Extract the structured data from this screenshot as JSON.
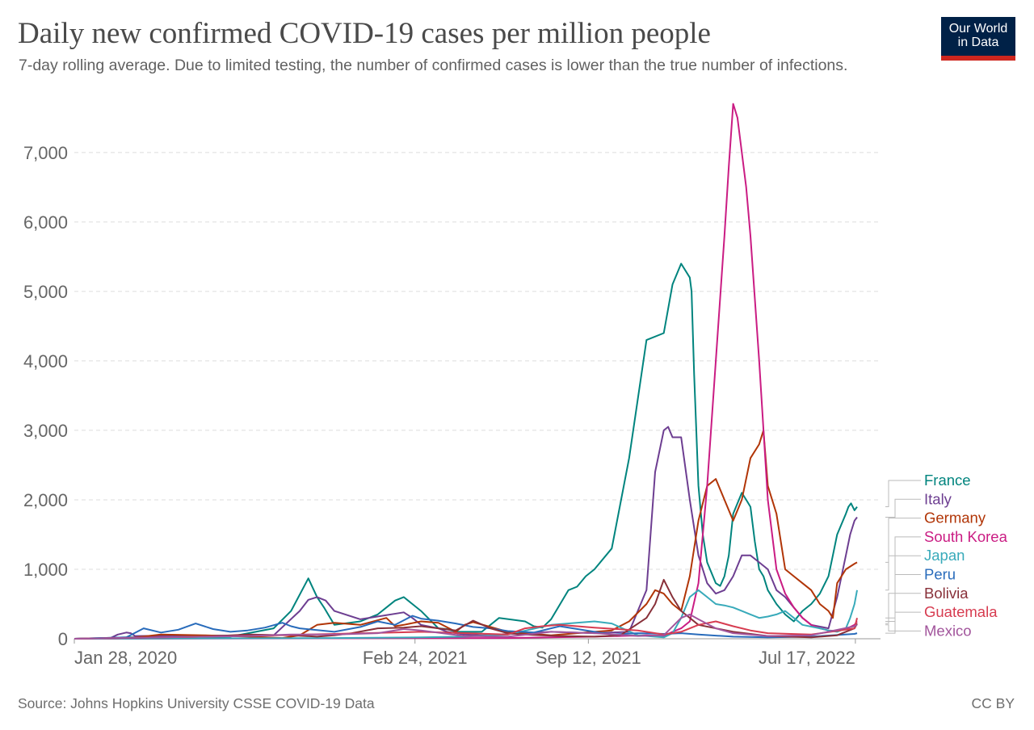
{
  "header": {
    "title": "Daily new confirmed COVID-19 cases per million people",
    "subtitle": "7-day rolling average. Due to limited testing, the number of confirmed cases is lower than the true number of infections."
  },
  "logo": {
    "line1": "Our World",
    "line2": "in Data"
  },
  "footer": {
    "source": "Source: Johns Hopkins University CSSE COVID-19 Data",
    "license": "CC BY"
  },
  "chart_data": {
    "type": "line",
    "title": "Daily new confirmed COVID-19 cases per million people",
    "xlabel": "",
    "ylabel": "",
    "ylim": [
      0,
      7800
    ],
    "xlim": [
      0,
      930
    ],
    "grid": true,
    "yticks": [
      {
        "value": 0,
        "label": "0"
      },
      {
        "value": 1000,
        "label": "1,000"
      },
      {
        "value": 2000,
        "label": "2,000"
      },
      {
        "value": 3000,
        "label": "3,000"
      },
      {
        "value": 4000,
        "label": "4,000"
      },
      {
        "value": 5000,
        "label": "5,000"
      },
      {
        "value": 6000,
        "label": "6,000"
      },
      {
        "value": 7000,
        "label": "7,000"
      }
    ],
    "xticks": [
      {
        "day": 0,
        "label": "Jan 28, 2020"
      },
      {
        "day": 393,
        "label": "Feb 24, 2021"
      },
      {
        "day": 593,
        "label": "Sep 12, 2021"
      },
      {
        "day": 901,
        "label": "Jul 17, 2022"
      }
    ],
    "series": [
      {
        "name": "France",
        "color": "#00847e",
        "x": [
          0,
          60,
          180,
          230,
          250,
          270,
          280,
          288,
          300,
          330,
          350,
          360,
          370,
          380,
          400,
          420,
          430,
          440,
          470,
          490,
          520,
          530,
          540,
          550,
          570,
          580,
          590,
          600,
          620,
          640,
          660,
          680,
          690,
          700,
          710,
          712,
          715,
          720,
          725,
          730,
          740,
          745,
          750,
          755,
          760,
          770,
          775,
          780,
          785,
          790,
          795,
          800,
          810,
          820,
          830,
          840,
          850,
          860,
          870,
          875,
          880,
          890,
          893,
          896,
          900,
          903
        ],
        "y": [
          0,
          20,
          30,
          150,
          400,
          870,
          600,
          450,
          200,
          250,
          350,
          450,
          550,
          600,
          400,
          150,
          140,
          100,
          100,
          300,
          250,
          180,
          160,
          280,
          700,
          750,
          900,
          1000,
          1300,
          2600,
          4300,
          4400,
          5100,
          5400,
          5200,
          5000,
          3800,
          2200,
          1500,
          1100,
          800,
          760,
          900,
          1200,
          1800,
          2100,
          2000,
          1900,
          1400,
          1000,
          900,
          700,
          500,
          350,
          250,
          400,
          500,
          650,
          900,
          1200,
          1500,
          1800,
          1900,
          1950,
          1850,
          1900
        ]
      },
      {
        "name": "Italy",
        "color": "#6d3e91",
        "x": [
          0,
          40,
          50,
          60,
          65,
          70,
          230,
          260,
          270,
          280,
          290,
          300,
          330,
          380,
          390,
          400,
          420,
          430,
          450,
          470,
          550,
          600,
          640,
          660,
          670,
          680,
          685,
          690,
          700,
          710,
          720,
          730,
          740,
          750,
          760,
          770,
          780,
          790,
          800,
          810,
          820,
          830,
          840,
          850,
          870,
          880,
          890,
          895,
          900,
          903
        ],
        "y": [
          0,
          0,
          60,
          90,
          80,
          40,
          50,
          400,
          560,
          600,
          550,
          400,
          280,
          380,
          300,
          200,
          150,
          100,
          60,
          50,
          100,
          80,
          100,
          700,
          2400,
          3000,
          3050,
          2900,
          2900,
          2000,
          1200,
          800,
          650,
          700,
          900,
          1200,
          1200,
          1100,
          1000,
          700,
          600,
          450,
          300,
          200,
          150,
          600,
          1200,
          1500,
          1700,
          1750
        ]
      },
      {
        "name": "Germany",
        "color": "#b13507",
        "x": [
          0,
          60,
          100,
          150,
          200,
          240,
          260,
          280,
          300,
          330,
          360,
          370,
          380,
          400,
          420,
          440,
          450,
          460,
          500,
          550,
          600,
          620,
          640,
          660,
          670,
          680,
          690,
          700,
          710,
          720,
          730,
          740,
          750,
          760,
          770,
          780,
          790,
          795,
          800,
          810,
          820,
          830,
          840,
          850,
          860,
          870,
          875,
          880,
          890,
          900,
          903
        ],
        "y": [
          0,
          5,
          60,
          50,
          30,
          10,
          50,
          200,
          230,
          200,
          300,
          180,
          200,
          250,
          230,
          100,
          200,
          240,
          100,
          50,
          100,
          120,
          250,
          500,
          700,
          650,
          500,
          400,
          900,
          1700,
          2200,
          2300,
          2000,
          1700,
          2000,
          2600,
          2800,
          3000,
          2200,
          1800,
          1000,
          900,
          800,
          700,
          500,
          400,
          300,
          800,
          1000,
          1080,
          1100
        ]
      },
      {
        "name": "South Korea",
        "color": "#ca1c83",
        "x": [
          0,
          500,
          600,
          660,
          680,
          690,
          700,
          710,
          720,
          730,
          740,
          750,
          755,
          760,
          765,
          770,
          775,
          780,
          790,
          800,
          810,
          820,
          830,
          840,
          850,
          860,
          870,
          880,
          890,
          900,
          903
        ],
        "y": [
          0,
          10,
          30,
          50,
          40,
          100,
          150,
          250,
          800,
          2200,
          4000,
          5800,
          6800,
          7700,
          7500,
          7000,
          6500,
          5800,
          4000,
          2000,
          1000,
          650,
          450,
          300,
          200,
          150,
          120,
          110,
          140,
          200,
          250
        ]
      },
      {
        "name": "Japan",
        "color": "#38aaba",
        "x": [
          0,
          300,
          400,
          450,
          500,
          550,
          600,
          620,
          650,
          680,
          690,
          700,
          710,
          720,
          730,
          740,
          750,
          760,
          770,
          780,
          790,
          800,
          810,
          820,
          830,
          840,
          860,
          870,
          880,
          890,
          895,
          900,
          903
        ],
        "y": [
          0,
          10,
          20,
          30,
          60,
          200,
          250,
          220,
          50,
          20,
          80,
          300,
          600,
          700,
          600,
          500,
          480,
          450,
          400,
          350,
          300,
          320,
          350,
          400,
          300,
          200,
          150,
          120,
          100,
          150,
          300,
          500,
          700
        ]
      },
      {
        "name": "Peru",
        "color": "#286bbb",
        "x": [
          0,
          60,
          80,
          100,
          120,
          140,
          160,
          180,
          200,
          220,
          240,
          250,
          260,
          300,
          330,
          350,
          370,
          390,
          400,
          420,
          440,
          460,
          480,
          500,
          530,
          560,
          600,
          620,
          650,
          680,
          700,
          720,
          760,
          800,
          850,
          900,
          903
        ],
        "y": [
          0,
          20,
          150,
          90,
          130,
          220,
          140,
          100,
          120,
          160,
          230,
          180,
          150,
          100,
          170,
          250,
          200,
          330,
          290,
          260,
          220,
          170,
          150,
          110,
          90,
          180,
          100,
          60,
          80,
          70,
          80,
          60,
          30,
          20,
          30,
          70,
          80
        ]
      },
      {
        "name": "Bolivia",
        "color": "#883039",
        "x": [
          0,
          150,
          200,
          250,
          280,
          300,
          320,
          350,
          380,
          400,
          440,
          460,
          480,
          500,
          520,
          540,
          560,
          600,
          630,
          660,
          670,
          680,
          690,
          700,
          710,
          720,
          760,
          800,
          850,
          880,
          900,
          903
        ],
        "y": [
          0,
          30,
          60,
          50,
          30,
          50,
          80,
          150,
          160,
          180,
          120,
          260,
          150,
          80,
          60,
          50,
          40,
          30,
          50,
          300,
          500,
          850,
          600,
          400,
          300,
          200,
          100,
          40,
          20,
          50,
          150,
          220
        ]
      },
      {
        "name": "Guatemala",
        "color": "#d73c50",
        "x": [
          0,
          200,
          300,
          400,
          500,
          520,
          540,
          560,
          600,
          650,
          680,
          700,
          720,
          740,
          760,
          780,
          800,
          850,
          900,
          903
        ],
        "y": [
          0,
          40,
          70,
          100,
          60,
          150,
          180,
          200,
          160,
          120,
          60,
          100,
          200,
          250,
          180,
          120,
          80,
          60,
          150,
          300
        ]
      },
      {
        "name": "Mexico",
        "color": "#a2559c",
        "x": [
          0,
          150,
          200,
          250,
          300,
          350,
          380,
          400,
          450,
          500,
          550,
          600,
          650,
          680,
          700,
          710,
          720,
          740,
          760,
          800,
          850,
          900,
          903
        ],
        "y": [
          0,
          30,
          40,
          60,
          60,
          80,
          140,
          120,
          40,
          30,
          100,
          80,
          40,
          50,
          300,
          350,
          280,
          150,
          80,
          40,
          50,
          180,
          200
        ]
      }
    ]
  }
}
